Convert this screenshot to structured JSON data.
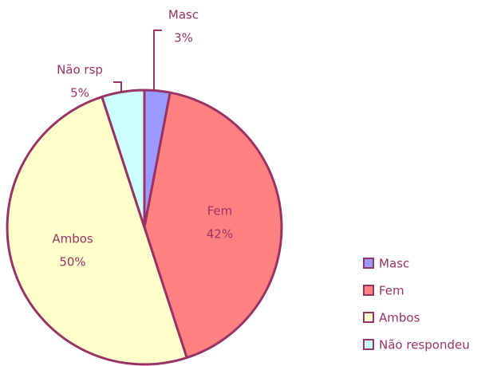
{
  "chart_data": {
    "type": "pie",
    "categories": [
      "Masc",
      "Fem",
      "Ambos",
      "Não respondeu"
    ],
    "data_labels": [
      "Masc",
      "Fem",
      "Ambos",
      "Não rsp"
    ],
    "values": [
      3,
      42,
      50,
      5
    ],
    "value_labels": [
      "3%",
      "42%",
      "50%",
      "5%"
    ],
    "colors": [
      "#9999ff",
      "#ff8080",
      "#ffffcc",
      "#ccffff"
    ],
    "legend": "right"
  }
}
